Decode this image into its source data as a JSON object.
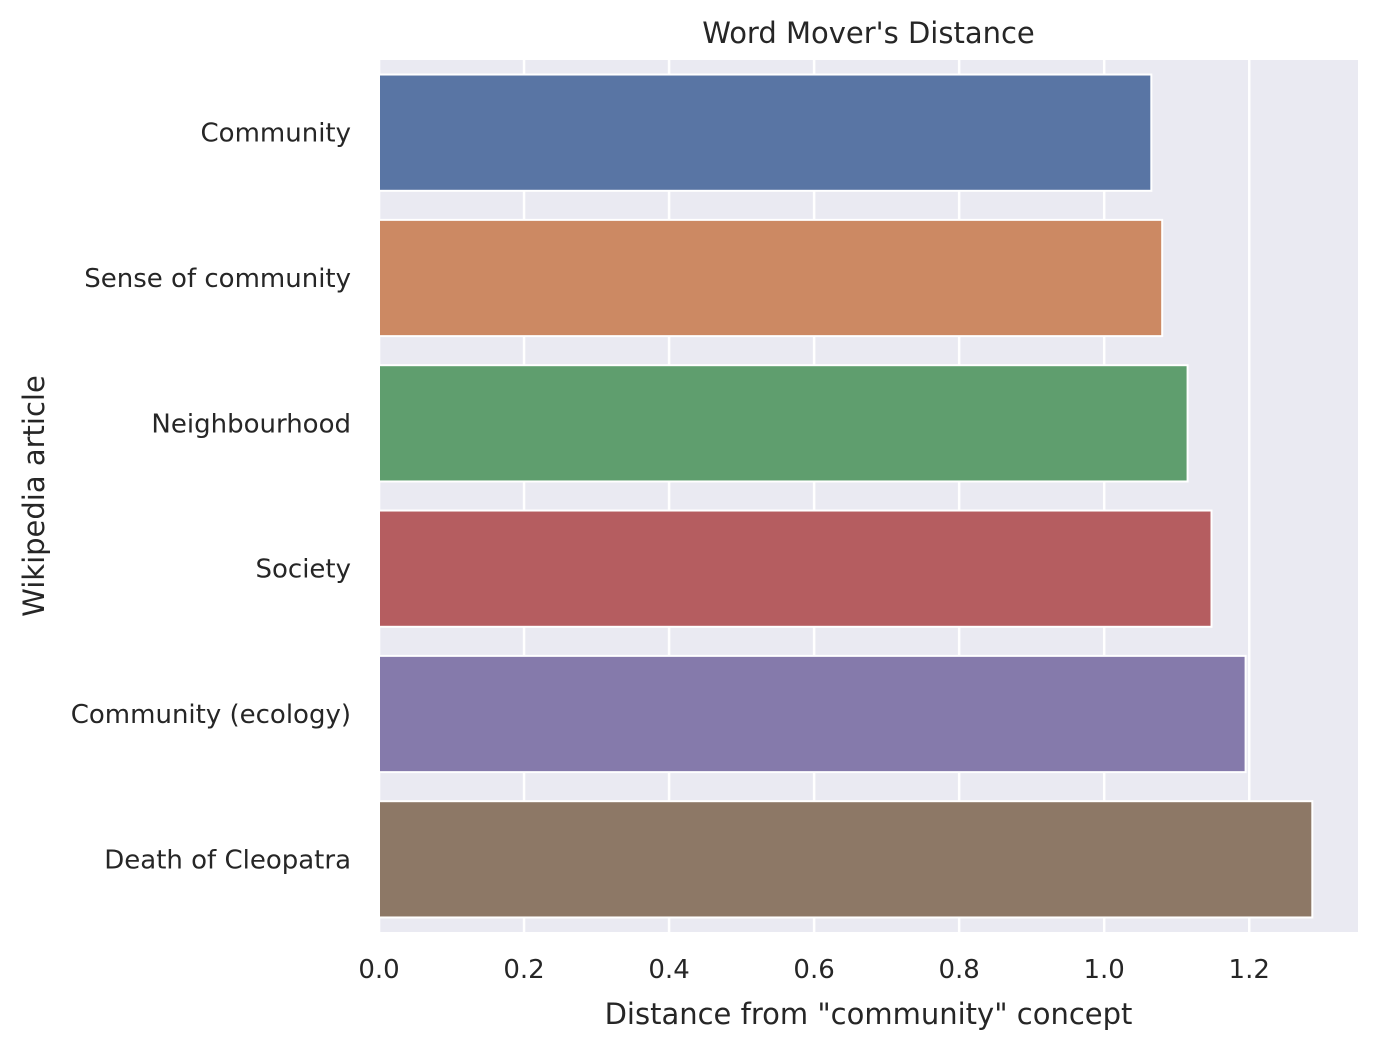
{
  "chart_data": {
    "type": "bar",
    "orientation": "horizontal",
    "title": "Word Mover's Distance",
    "xlabel": "Distance from \"community\" concept",
    "ylabel": "Wikipedia article",
    "categories": [
      "Community",
      "Sense of community",
      "Neighbourhood",
      "Society",
      "Community (ecology)",
      "Death of Cleopatra"
    ],
    "values": [
      1.065,
      1.08,
      1.115,
      1.148,
      1.195,
      1.287
    ],
    "colors": [
      "#5975a4",
      "#cc8963",
      "#5f9e6e",
      "#b55d60",
      "#857aab",
      "#8d7866"
    ],
    "xlim": [
      0,
      1.35
    ],
    "xticks": [
      0.0,
      0.2,
      0.4,
      0.6,
      0.8,
      1.0,
      1.2
    ],
    "xtick_labels": [
      "0.0",
      "0.2",
      "0.4",
      "0.6",
      "0.8",
      "1.0",
      "1.2"
    ],
    "grid": true,
    "background": "#eaeaf2",
    "grid_color": "#ffffff"
  }
}
